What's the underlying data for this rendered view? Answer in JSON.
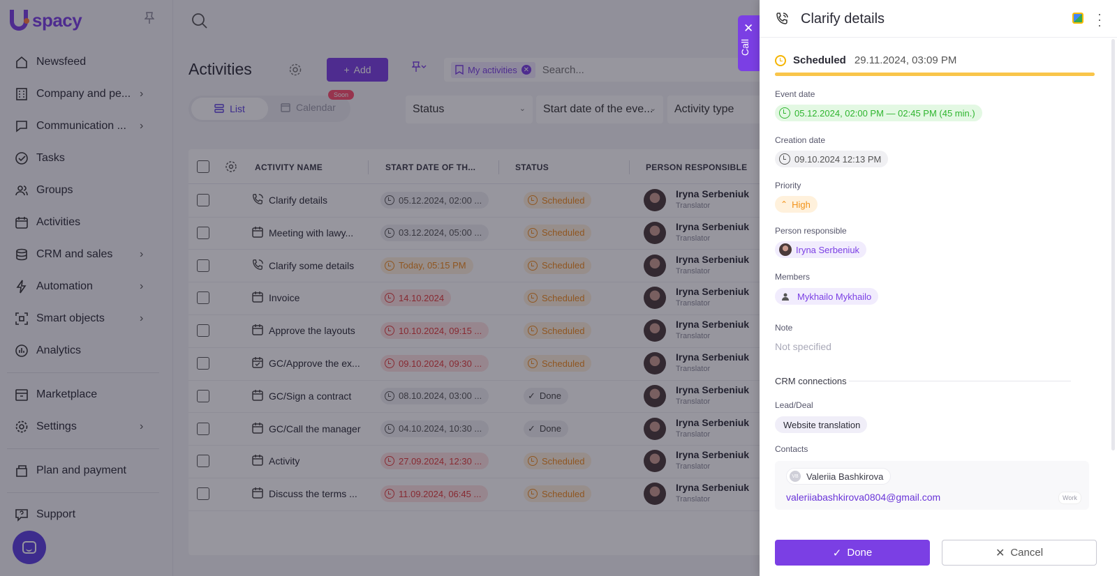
{
  "app": {
    "logo_text": "spacy"
  },
  "sidebar": {
    "items": [
      {
        "label": "Newsfeed",
        "icon": "home-icon",
        "chevron": false
      },
      {
        "label": "Company and pe...",
        "icon": "company-icon",
        "chevron": true
      },
      {
        "label": "Communication ...",
        "icon": "communication-icon",
        "chevron": true
      },
      {
        "label": "Tasks",
        "icon": "tasks-icon",
        "chevron": false
      },
      {
        "label": "Groups",
        "icon": "groups-icon",
        "chevron": false
      },
      {
        "label": "Activities",
        "icon": "activities-icon",
        "chevron": false
      },
      {
        "label": "CRM and sales",
        "icon": "crm-icon",
        "chevron": true
      },
      {
        "label": "Automation",
        "icon": "automation-icon",
        "chevron": true
      },
      {
        "label": "Smart objects",
        "icon": "smart-objects-icon",
        "chevron": true
      },
      {
        "label": "Analytics",
        "icon": "analytics-icon",
        "chevron": false
      }
    ],
    "bottom_items": [
      {
        "label": "Marketplace",
        "icon": "marketplace-icon",
        "chevron": false
      },
      {
        "label": "Settings",
        "icon": "settings-icon",
        "chevron": true
      },
      {
        "label": "Plan and payment",
        "icon": "payment-icon",
        "chevron": false
      },
      {
        "label": "Support",
        "icon": "support-icon",
        "chevron": false
      }
    ]
  },
  "main": {
    "title": "Activities",
    "add_label": "Add",
    "filter_chip": "My activities",
    "search_placeholder": "Search...",
    "view_list": "List",
    "view_calendar": "Calendar",
    "soon_badge": "Soon",
    "filters": [
      "Status",
      "Start date of the eve...",
      "Activity type"
    ]
  },
  "table": {
    "columns": [
      "ACTIVITY NAME",
      "START DATE OF TH...",
      "STATUS",
      "PERSON RESPONSIBLE"
    ],
    "rows": [
      {
        "icon": "phone-icon",
        "name": "Clarify details",
        "date": "05.12.2024, 02:00 ...",
        "date_style": "grey",
        "status": "Scheduled",
        "person": "Iryna Serbeniuk",
        "role": "Translator"
      },
      {
        "icon": "calendar-icon",
        "name": "Meeting with lawy...",
        "date": "03.12.2024, 05:00 ...",
        "date_style": "grey",
        "status": "Scheduled",
        "person": "Iryna Serbeniuk",
        "role": "Translator"
      },
      {
        "icon": "phone-icon",
        "name": "Clarify some details",
        "date": "Today, 05:15 PM",
        "date_style": "orange",
        "status": "Scheduled",
        "person": "Iryna Serbeniuk",
        "role": "Translator"
      },
      {
        "icon": "calendar-icon",
        "name": "Invoice",
        "date": "14.10.2024",
        "date_style": "red",
        "status": "Scheduled",
        "person": "Iryna Serbeniuk",
        "role": "Translator"
      },
      {
        "icon": "calendar-icon",
        "name": "Approve the layouts",
        "date": "10.10.2024, 09:15 ...",
        "date_style": "red",
        "status": "Scheduled",
        "person": "Iryna Serbeniuk",
        "role": "Translator"
      },
      {
        "icon": "calendar-check-icon",
        "name": "GC/Approve the ex...",
        "date": "09.10.2024, 09:30 ...",
        "date_style": "red",
        "status": "Scheduled",
        "person": "Iryna Serbeniuk",
        "role": "Translator"
      },
      {
        "icon": "calendar-icon",
        "name": "GC/Sign a contract",
        "date": "08.10.2024, 03:00 ...",
        "date_style": "grey",
        "status": "Done",
        "person": "Iryna Serbeniuk",
        "role": "Translator"
      },
      {
        "icon": "calendar-icon",
        "name": "GC/Call the manager",
        "date": "04.10.2024, 10:30 ...",
        "date_style": "grey",
        "status": "Done",
        "person": "Iryna Serbeniuk",
        "role": "Translator"
      },
      {
        "icon": "calendar-icon",
        "name": "Activity",
        "date": "27.09.2024, 12:30 ...",
        "date_style": "red",
        "status": "Scheduled",
        "person": "Iryna Serbeniuk",
        "role": "Translator"
      },
      {
        "icon": "calendar-icon",
        "name": "Discuss the terms ...",
        "date": "11.09.2024, 06:45 ...",
        "date_style": "red",
        "status": "Scheduled",
        "person": "Iryna Serbeniuk",
        "role": "Translator"
      }
    ]
  },
  "call_tab": {
    "label": "Call"
  },
  "panel": {
    "title": "Clarify details",
    "status": "Scheduled",
    "status_date": "29.11.2024, 03:09 PM",
    "status_progress": 1.0,
    "event_date_label": "Event date",
    "event_date": "05.12.2024, 02:00 PM — 02:45 PM (45 min.)",
    "creation_date_label": "Creation date",
    "creation_date": "09.10.2024 12:13 PM",
    "priority_label": "Priority",
    "priority": "High",
    "person_label": "Person responsible",
    "person": "Iryna Serbeniuk",
    "members_label": "Members",
    "member": "Mykhailo Mykhailo",
    "note_label": "Note",
    "note_value": "Not specified",
    "crm_label": "CRM connections",
    "lead_label": "Lead/Deal",
    "lead_value": "Website translation",
    "contacts_label": "Contacts",
    "contact_initials": "VB",
    "contact_name": "Valeriia Bashkirova",
    "contact_email": "valeriiabashkirova0804@gmail.com",
    "contact_email_type": "Work",
    "done_label": "Done",
    "cancel_label": "Cancel"
  },
  "colors": {
    "accent": "#7b3fe4",
    "scheduled": "#f08b1c",
    "overdue": "#e23b3b",
    "event_green": "#2fb52f"
  }
}
